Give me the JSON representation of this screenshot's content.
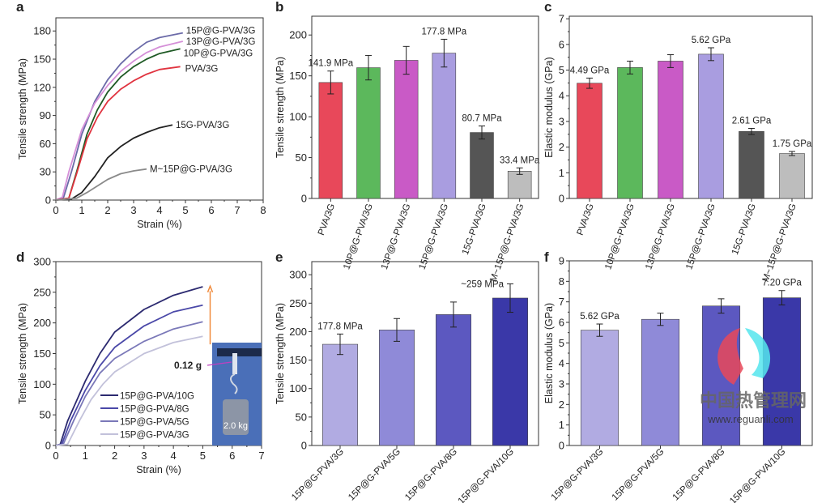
{
  "chart_data": [
    {
      "panel": "a",
      "type": "line",
      "xlabel": "Strain (%)",
      "ylabel": "Tensile strength (MPa)",
      "xlim": [
        0,
        8
      ],
      "ylim": [
        0,
        194
      ],
      "xticks": [
        0,
        1,
        2,
        3,
        4,
        5,
        6,
        7,
        8
      ],
      "yticks": [
        0,
        30,
        60,
        90,
        120,
        150,
        180
      ],
      "series": [
        {
          "name": "15P@G-PVA/3G",
          "color": "#6b6aa8",
          "points": [
            [
              0,
              0
            ],
            [
              0.3,
              3
            ],
            [
              0.6,
              30
            ],
            [
              1,
              70
            ],
            [
              1.5,
              105
            ],
            [
              2,
              128
            ],
            [
              2.5,
              145
            ],
            [
              3,
              158
            ],
            [
              3.5,
              168
            ],
            [
              4,
              173
            ],
            [
              4.9,
              178
            ]
          ]
        },
        {
          "name": "13P@G-PVA/3G",
          "color": "#d58fd8",
          "points": [
            [
              0,
              0
            ],
            [
              0.25,
              3
            ],
            [
              0.5,
              30
            ],
            [
              1,
              75
            ],
            [
              1.5,
              103
            ],
            [
              2,
              122
            ],
            [
              2.5,
              137
            ],
            [
              3,
              148
            ],
            [
              3.5,
              157
            ],
            [
              4,
              163
            ],
            [
              4.9,
              169
            ]
          ]
        },
        {
          "name": "10P@G-PVA/3G",
          "color": "#1f5a25",
          "points": [
            [
              0,
              0
            ],
            [
              0.5,
              2
            ],
            [
              0.8,
              30
            ],
            [
              1.2,
              70
            ],
            [
              1.6,
              96
            ],
            [
              2,
              115
            ],
            [
              2.5,
              131
            ],
            [
              3,
              142
            ],
            [
              3.5,
              150
            ],
            [
              4,
              156
            ],
            [
              4.8,
              161
            ]
          ]
        },
        {
          "name": "PVA/3G",
          "color": "#e0333f",
          "points": [
            [
              0,
              0
            ],
            [
              0.5,
              2
            ],
            [
              0.8,
              28
            ],
            [
              1.2,
              65
            ],
            [
              1.6,
              88
            ],
            [
              2,
              105
            ],
            [
              2.5,
              118
            ],
            [
              3,
              127
            ],
            [
              3.5,
              134
            ],
            [
              4,
              139
            ],
            [
              4.8,
              142
            ]
          ]
        },
        {
          "name": "15G-PVA/3G",
          "color": "#222222",
          "points": [
            [
              0,
              0
            ],
            [
              0.6,
              1
            ],
            [
              1,
              8
            ],
            [
              1.5,
              25
            ],
            [
              2,
              45
            ],
            [
              2.5,
              57
            ],
            [
              3,
              66
            ],
            [
              3.5,
              72
            ],
            [
              4,
              77
            ],
            [
              4.5,
              80
            ]
          ]
        },
        {
          "name": "M~15P@G-PVA/3G",
          "color": "#8a8a8a",
          "points": [
            [
              0,
              0
            ],
            [
              0.8,
              2
            ],
            [
              1.2,
              8
            ],
            [
              1.6,
              15
            ],
            [
              2,
              22
            ],
            [
              2.5,
              28
            ],
            [
              3,
              31
            ],
            [
              3.5,
              33
            ]
          ]
        }
      ]
    },
    {
      "panel": "b",
      "type": "bar",
      "ylabel": "Tensile strength (MPa)",
      "ylim": [
        0,
        223
      ],
      "yticks": [
        0,
        50,
        100,
        150,
        200
      ],
      "categories": [
        "PVA/3G",
        "10P@G-PVA/3G",
        "13P@G-PVA/3G",
        "15P@G-PVA/3G",
        "15G-PVA/3G",
        "M~15P@G-PVA/3G"
      ],
      "values": [
        141.9,
        160,
        169,
        177.8,
        80.7,
        33.4
      ],
      "errors": [
        14,
        15,
        17,
        17,
        8,
        4
      ],
      "colors": [
        "#e8485a",
        "#5cb85c",
        "#c95ac6",
        "#a99de0",
        "#555555",
        "#bdbdbd"
      ],
      "labels": [
        "141.9 MPa",
        "",
        "",
        "177.8 MPa",
        "80.7 MPa",
        "33.4 MPa"
      ]
    },
    {
      "panel": "c",
      "type": "bar",
      "ylabel": "Elastic modulus (GPa)",
      "ylim": [
        0,
        7.1
      ],
      "yticks": [
        0,
        1,
        2,
        3,
        4,
        5,
        6,
        7
      ],
      "categories": [
        "PVA/3G",
        "10P@G-PVA/3G",
        "13P@G-PVA/3G",
        "15P@G-PVA/3G",
        "15G-PVA/3G",
        "M~15P@G-PVA/3G"
      ],
      "values": [
        4.49,
        5.1,
        5.35,
        5.62,
        2.61,
        1.75
      ],
      "errors": [
        0.2,
        0.25,
        0.25,
        0.25,
        0.12,
        0.08
      ],
      "colors": [
        "#e8485a",
        "#5cb85c",
        "#c95ac6",
        "#a99de0",
        "#555555",
        "#bdbdbd"
      ],
      "labels": [
        "4.49 GPa",
        "",
        "",
        "5.62 GPa",
        "2.61 GPa",
        "1.75 GPa"
      ]
    },
    {
      "panel": "d",
      "type": "line",
      "xlabel": "Strain (%)",
      "ylabel": "Tensile strength (MPa)",
      "xlim": [
        0,
        7
      ],
      "ylim": [
        0,
        300
      ],
      "xticks": [
        0,
        1,
        2,
        3,
        4,
        5,
        6,
        7
      ],
      "yticks": [
        0,
        50,
        100,
        150,
        200,
        250,
        300
      ],
      "legend_position": "bottom-center",
      "series": [
        {
          "name": "15P@G-PVA/10G",
          "color": "#2c2a70",
          "points": [
            [
              0,
              0
            ],
            [
              0.15,
              2
            ],
            [
              0.4,
              40
            ],
            [
              1,
              105
            ],
            [
              1.5,
              150
            ],
            [
              2,
              185
            ],
            [
              3,
              222
            ],
            [
              4,
              245
            ],
            [
              5,
              259
            ]
          ]
        },
        {
          "name": "15P@G-PVA/8G",
          "color": "#4a48a8",
          "points": [
            [
              0,
              0
            ],
            [
              0.2,
              2
            ],
            [
              0.5,
              40
            ],
            [
              1,
              90
            ],
            [
              1.5,
              130
            ],
            [
              2,
              160
            ],
            [
              3,
              195
            ],
            [
              4,
              218
            ],
            [
              5,
              229
            ]
          ]
        },
        {
          "name": "15P@G-PVA/5G",
          "color": "#7a78b8",
          "points": [
            [
              0,
              0
            ],
            [
              0.25,
              2
            ],
            [
              0.6,
              40
            ],
            [
              1,
              80
            ],
            [
              1.5,
              118
            ],
            [
              2,
              142
            ],
            [
              3,
              170
            ],
            [
              4,
              190
            ],
            [
              5,
              202
            ]
          ]
        },
        {
          "name": "15P@G-PVA/3G",
          "color": "#c2c1da",
          "points": [
            [
              0,
              0
            ],
            [
              0.4,
              2
            ],
            [
              0.8,
              40
            ],
            [
              1.2,
              75
            ],
            [
              1.6,
              100
            ],
            [
              2,
              120
            ],
            [
              3,
              150
            ],
            [
              4,
              168
            ],
            [
              5,
              178
            ]
          ]
        }
      ],
      "inset": {
        "sample_label": "0.12 g",
        "weight_label": "2.0 kg"
      },
      "arrow_color": "#f08a3c"
    },
    {
      "panel": "e",
      "type": "bar",
      "ylabel": "Tensile strength (MPa)",
      "ylim": [
        0,
        323
      ],
      "yticks": [
        0,
        50,
        100,
        150,
        200,
        250,
        300
      ],
      "categories": [
        "15P@G-PVA/3G",
        "15P@G-PVA/5G",
        "15P@G-PVA/8G",
        "15P@G-PVA/10G"
      ],
      "values": [
        177.8,
        203,
        230,
        259
      ],
      "errors": [
        18,
        20,
        22,
        25
      ],
      "colors": [
        "#b1abe2",
        "#8f8ad8",
        "#5c58c0",
        "#3a38a8"
      ],
      "labels": [
        "177.8 MPa",
        "",
        "",
        "~259 MPa"
      ]
    },
    {
      "panel": "f",
      "type": "bar",
      "ylabel": "Elastic modulus (GPa)",
      "ylim": [
        0,
        9
      ],
      "yticks": [
        0,
        1,
        2,
        3,
        4,
        5,
        6,
        7,
        8,
        9
      ],
      "categories": [
        "15P@G-PVA/3G",
        "15P@G-PVA/5G",
        "15P@G-PVA/8G",
        "15P@G-PVA/10G"
      ],
      "values": [
        5.62,
        6.15,
        6.8,
        7.2
      ],
      "errors": [
        0.3,
        0.3,
        0.35,
        0.35
      ],
      "colors": [
        "#b1abe2",
        "#8f8ad8",
        "#5c58c0",
        "#3a38a8"
      ],
      "labels": [
        "5.62 GPa",
        "",
        "",
        "7.20 GPa"
      ]
    }
  ],
  "watermark": {
    "title": "中国热管理网",
    "url": "www.reguanli.com"
  }
}
